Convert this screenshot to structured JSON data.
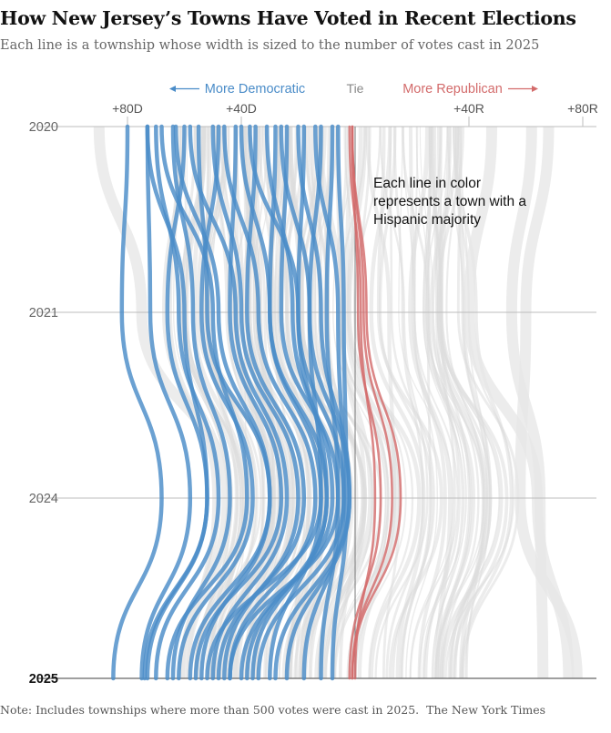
{
  "title": "How New Jersey’s Towns Have Voted in Recent Elections",
  "subtitle": "Each line is a township whose width is sized to the number of votes cast in 2025",
  "note": "Note: Includes townships where more than 500 votes were cast in 2025.",
  "source": "The New York Times",
  "chart_data": {
    "type": "line",
    "orientation": "vertical",
    "x_axis": {
      "ticks": [
        "+80D",
        "+40D",
        "+40R",
        "+80R"
      ],
      "tick_values": [
        -80,
        -40,
        40,
        80
      ],
      "center_label": "Tie",
      "left_label": "More Democratic",
      "right_label": "More Republican",
      "range": [
        -88,
        88
      ]
    },
    "y_axis": {
      "categories": [
        "2020",
        "2021",
        "2024",
        "2025"
      ]
    },
    "annotation": "Each line in color represents a town with a Hispanic majority",
    "colors": {
      "democratic": "#4a8cc8",
      "republican": "#d36b6b",
      "background_lines": "#dcdcdc",
      "axis": "#999999"
    },
    "series": [
      {
        "party": "D",
        "values": [
          -80,
          -82,
          -68,
          -85
        ]
      },
      {
        "party": "D",
        "values": [
          -73,
          -60,
          -52,
          -74
        ]
      },
      {
        "party": "D",
        "values": [
          -73,
          -72,
          -58,
          -75
        ]
      },
      {
        "party": "D",
        "values": [
          -68,
          -50,
          -38,
          -66
        ]
      },
      {
        "party": "D",
        "values": [
          -70,
          -62,
          -48,
          -70
        ]
      },
      {
        "party": "D",
        "values": [
          -64,
          -57,
          -44,
          -64
        ]
      },
      {
        "party": "D",
        "values": [
          -63,
          -48,
          -30,
          -54
        ]
      },
      {
        "party": "D",
        "values": [
          -60,
          -66,
          -52,
          -73
        ]
      },
      {
        "party": "D",
        "values": [
          -58,
          -42,
          -24,
          -50
        ]
      },
      {
        "party": "D",
        "values": [
          -55,
          -52,
          -30,
          -58
        ]
      },
      {
        "party": "D",
        "values": [
          -50,
          -40,
          -20,
          -46
        ]
      },
      {
        "party": "D",
        "values": [
          -48,
          -54,
          -36,
          -62
        ]
      },
      {
        "party": "D",
        "values": [
          -46,
          -34,
          -14,
          -44
        ]
      },
      {
        "party": "D",
        "values": [
          -42,
          -44,
          -26,
          -56
        ]
      },
      {
        "party": "D",
        "values": [
          -40,
          -30,
          -10,
          -38
        ]
      },
      {
        "party": "D",
        "values": [
          -37,
          -20,
          -4,
          -34
        ]
      },
      {
        "party": "D",
        "values": [
          -35,
          -38,
          -18,
          -48
        ]
      },
      {
        "party": "D",
        "values": [
          -31,
          -22,
          -8,
          -40
        ]
      },
      {
        "party": "D",
        "values": [
          -28,
          -30,
          -12,
          -52
        ]
      },
      {
        "party": "D",
        "values": [
          -26,
          -16,
          -2,
          -28
        ]
      },
      {
        "party": "D",
        "values": [
          -24,
          -26,
          -6,
          -44
        ]
      },
      {
        "party": "D",
        "values": [
          -20,
          -12,
          -2,
          -24
        ]
      },
      {
        "party": "D",
        "values": [
          -18,
          -20,
          -10,
          -36
        ]
      },
      {
        "party": "D",
        "values": [
          -14,
          -6,
          -4,
          -18
        ]
      },
      {
        "party": "D",
        "values": [
          -12,
          -16,
          -12,
          -30
        ]
      },
      {
        "party": "D",
        "values": [
          -8,
          -10,
          -6,
          -12
        ]
      },
      {
        "party": "D",
        "values": [
          -6,
          -4,
          -3,
          -8
        ]
      },
      {
        "party": "R",
        "values": [
          -2,
          2,
          7,
          0
        ]
      },
      {
        "party": "R",
        "values": [
          -1,
          3,
          13,
          -1
        ]
      },
      {
        "party": "R",
        "values": [
          -1,
          1,
          9,
          -2
        ]
      },
      {
        "party": "R",
        "values": [
          -1,
          4,
          16,
          -1
        ]
      }
    ]
  }
}
